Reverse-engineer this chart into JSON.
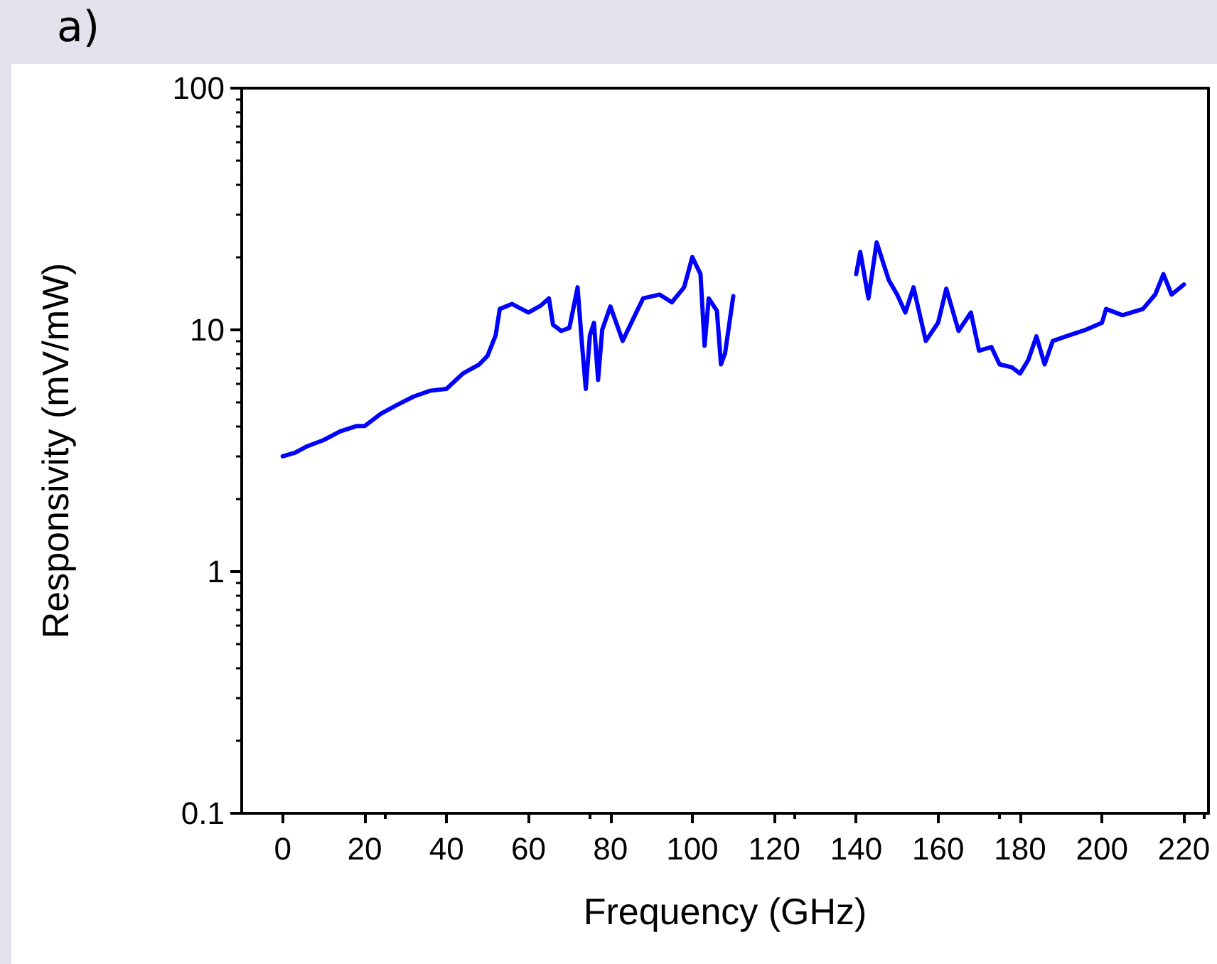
{
  "chart_data": {
    "type": "line",
    "title": "a)",
    "xlabel": "Frequency (GHz)",
    "ylabel": "Responsivity (mV/mW)",
    "xlim": [
      -10,
      226
    ],
    "xticks": [
      0,
      20,
      40,
      60,
      80,
      100,
      120,
      140,
      160,
      180,
      200,
      220
    ],
    "ylim": [
      0.1,
      100
    ],
    "yticks": [
      0.1,
      1,
      10,
      100
    ],
    "log": "y",
    "grid": false,
    "marker": "none",
    "line_style": "solid",
    "series": [
      {
        "color": "#0000ff",
        "x": [
          0,
          3,
          6,
          10,
          14,
          18,
          20,
          24,
          28,
          32,
          36,
          40,
          44,
          48,
          50,
          52,
          53,
          56,
          60,
          63,
          65,
          66,
          68,
          70,
          72,
          73,
          74,
          75,
          76,
          77,
          78,
          80,
          83,
          86,
          88,
          92,
          95,
          98,
          100,
          102,
          103,
          104,
          106,
          107,
          108,
          110,
          125,
          140,
          141,
          143,
          145,
          148,
          150,
          152,
          154,
          157,
          160,
          162,
          165,
          168,
          170,
          173,
          175,
          178,
          180,
          182,
          184,
          186,
          188,
          192,
          196,
          200,
          201,
          205,
          210,
          213,
          215,
          217,
          220
        ],
        "values": [
          3.0,
          3.1,
          3.3,
          3.5,
          3.8,
          4.0,
          4.0,
          4.5,
          4.9,
          5.3,
          5.6,
          5.7,
          6.6,
          7.2,
          7.8,
          9.5,
          12.2,
          12.8,
          11.8,
          12.6,
          13.5,
          10.5,
          9.9,
          10.2,
          15,
          9,
          5.7,
          9.5,
          10.7,
          6.2,
          10,
          12.5,
          9,
          11.5,
          13.5,
          14,
          13,
          15,
          20,
          17,
          8.6,
          13.5,
          12,
          7.2,
          8,
          13.8,
          null,
          17,
          21,
          13.5,
          23,
          16,
          14,
          11.8,
          15,
          9,
          10.7,
          14.8,
          9.9,
          11.8,
          8.2,
          8.5,
          7.2,
          7,
          6.6,
          7.5,
          9.4,
          7.2,
          9,
          9.5,
          10,
          10.7,
          12.2,
          11.5,
          12.2,
          14,
          17,
          14,
          15.4
        ]
      }
    ]
  }
}
